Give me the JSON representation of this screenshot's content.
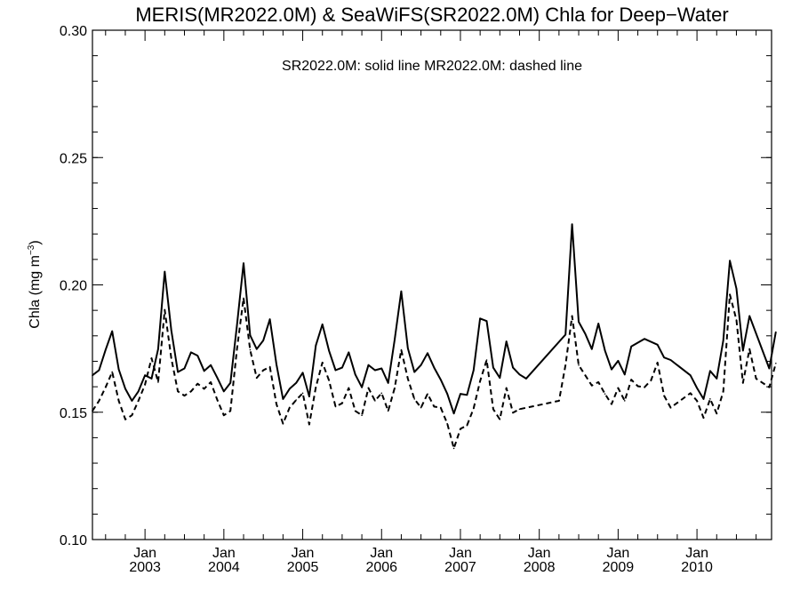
{
  "chart_data": {
    "type": "line",
    "title": "MERIS(MR2022.0M) & SeaWiFS(SR2022.0M)  Chla for Deep−Water",
    "annotation": "SR2022.0M: solid line   MR2022.0M: dashed line",
    "ylabel": {
      "base": "Chla (mg m",
      "sup": "−3",
      "close": ")"
    },
    "xlabel": "",
    "ylim": [
      0.1,
      0.3
    ],
    "xlim": [
      "2002-05",
      "2010-12"
    ],
    "y_ticks": [
      "0.10",
      "0.15",
      "0.20",
      "0.25",
      "0.30"
    ],
    "y_tick_values": [
      0.1,
      0.15,
      0.2,
      0.25,
      0.3
    ],
    "x_ticks": [
      {
        "month": "Jan",
        "year": "2003",
        "date": "2003-01"
      },
      {
        "month": "Jan",
        "year": "2004",
        "date": "2004-01"
      },
      {
        "month": "Jan",
        "year": "2005",
        "date": "2005-01"
      },
      {
        "month": "Jan",
        "year": "2006",
        "date": "2006-01"
      },
      {
        "month": "Jan",
        "year": "2007",
        "date": "2007-01"
      },
      {
        "month": "Jan",
        "year": "2008",
        "date": "2008-01"
      },
      {
        "month": "Jan",
        "year": "2009",
        "date": "2009-01"
      },
      {
        "month": "Jan",
        "year": "2010",
        "date": "2010-01"
      }
    ],
    "grid": false,
    "series": [
      {
        "name": "SR2022.0M",
        "style": "solid",
        "color": "#000000",
        "points": [
          [
            "2002-05",
            0.1645
          ],
          [
            "2002-06",
            0.1665
          ],
          [
            "2002-07",
            0.1745
          ],
          [
            "2002-08",
            0.1818
          ],
          [
            "2002-09",
            0.1668
          ],
          [
            "2002-10",
            0.1592
          ],
          [
            "2002-11",
            0.1545
          ],
          [
            "2002-12",
            0.1582
          ],
          [
            "2003-01",
            0.1645
          ],
          [
            "2003-02",
            0.1632
          ],
          [
            "2003-03",
            0.1748
          ],
          [
            "2003-04",
            0.2052
          ],
          [
            "2003-05",
            0.1822
          ],
          [
            "2003-06",
            0.1658
          ],
          [
            "2003-07",
            0.1672
          ],
          [
            "2003-08",
            0.1735
          ],
          [
            "2003-09",
            0.1722
          ],
          [
            "2003-10",
            0.1662
          ],
          [
            "2003-11",
            0.1685
          ],
          [
            "2003-12",
            0.1635
          ],
          [
            "2004-01",
            0.1582
          ],
          [
            "2004-02",
            0.1615
          ],
          [
            "2004-03",
            0.1842
          ],
          [
            "2004-04",
            0.2085
          ],
          [
            "2004-05",
            0.1802
          ],
          [
            "2004-06",
            0.1748
          ],
          [
            "2004-07",
            0.1782
          ],
          [
            "2004-08",
            0.1865
          ],
          [
            "2004-09",
            0.1688
          ],
          [
            "2004-10",
            0.1552
          ],
          [
            "2004-11",
            0.1592
          ],
          [
            "2004-12",
            0.1615
          ],
          [
            "2005-01",
            0.1655
          ],
          [
            "2005-02",
            0.1562
          ],
          [
            "2005-03",
            0.1762
          ],
          [
            "2005-04",
            0.1845
          ],
          [
            "2005-05",
            0.1742
          ],
          [
            "2005-06",
            0.1665
          ],
          [
            "2005-07",
            0.1675
          ],
          [
            "2005-08",
            0.1735
          ],
          [
            "2005-09",
            0.1648
          ],
          [
            "2005-10",
            0.1598
          ],
          [
            "2005-11",
            0.1685
          ],
          [
            "2005-12",
            0.1665
          ],
          [
            "2006-01",
            0.1672
          ],
          [
            "2006-02",
            0.1615
          ],
          [
            "2006-03",
            0.1785
          ],
          [
            "2006-04",
            0.1975
          ],
          [
            "2006-05",
            0.1752
          ],
          [
            "2006-06",
            0.1658
          ],
          [
            "2006-07",
            0.1685
          ],
          [
            "2006-08",
            0.1732
          ],
          [
            "2006-09",
            0.1675
          ],
          [
            "2006-10",
            0.1628
          ],
          [
            "2006-11",
            0.1572
          ],
          [
            "2006-12",
            0.1495
          ],
          [
            "2007-01",
            0.1572
          ],
          [
            "2007-02",
            0.1568
          ],
          [
            "2007-03",
            0.1665
          ],
          [
            "2007-04",
            0.1868
          ],
          [
            "2007-05",
            0.1858
          ],
          [
            "2007-06",
            0.1675
          ],
          [
            "2007-07",
            0.1635
          ],
          [
            "2007-08",
            0.1778
          ],
          [
            "2007-09",
            0.1675
          ],
          [
            "2007-10",
            0.1648
          ],
          [
            "2007-11",
            0.1632
          ],
          [
            "2008-05",
            0.1805
          ],
          [
            "2008-06",
            0.2238
          ],
          [
            "2008-07",
            0.1855
          ],
          [
            "2008-08",
            0.1808
          ],
          [
            "2008-09",
            0.1748
          ],
          [
            "2008-10",
            0.1848
          ],
          [
            "2008-11",
            0.1742
          ],
          [
            "2008-12",
            0.1668
          ],
          [
            "2009-01",
            0.1702
          ],
          [
            "2009-02",
            0.1648
          ],
          [
            "2009-03",
            0.1758
          ],
          [
            "2009-05",
            0.1788
          ],
          [
            "2009-07",
            0.1765
          ],
          [
            "2009-08",
            0.1715
          ],
          [
            "2009-09",
            0.1705
          ],
          [
            "2009-12",
            0.1645
          ],
          [
            "2010-01",
            0.1595
          ],
          [
            "2010-02",
            0.1552
          ],
          [
            "2010-03",
            0.1662
          ],
          [
            "2010-04",
            0.1632
          ],
          [
            "2010-05",
            0.1782
          ],
          [
            "2010-06",
            0.2095
          ],
          [
            "2010-07",
            0.1985
          ],
          [
            "2010-08",
            0.1742
          ],
          [
            "2010-09",
            0.1878
          ],
          [
            "2010-12",
            0.1672
          ],
          [
            "2011-01",
            0.1815
          ]
        ]
      },
      {
        "name": "MR2022.0M",
        "style": "dashed",
        "color": "#000000",
        "points": [
          [
            "2002-05",
            0.1505
          ],
          [
            "2002-06",
            0.1545
          ],
          [
            "2002-07",
            0.1598
          ],
          [
            "2002-08",
            0.1658
          ],
          [
            "2002-09",
            0.1545
          ],
          [
            "2002-10",
            0.1472
          ],
          [
            "2002-11",
            0.1488
          ],
          [
            "2002-12",
            0.1545
          ],
          [
            "2003-01",
            0.1608
          ],
          [
            "2003-02",
            0.1712
          ],
          [
            "2003-03",
            0.1618
          ],
          [
            "2003-04",
            0.1902
          ],
          [
            "2003-05",
            0.1712
          ],
          [
            "2003-06",
            0.1582
          ],
          [
            "2003-07",
            0.1565
          ],
          [
            "2003-08",
            0.1582
          ],
          [
            "2003-09",
            0.1612
          ],
          [
            "2003-10",
            0.1592
          ],
          [
            "2003-11",
            0.1618
          ],
          [
            "2003-12",
            0.1548
          ],
          [
            "2004-01",
            0.1488
          ],
          [
            "2004-02",
            0.1505
          ],
          [
            "2004-03",
            0.1748
          ],
          [
            "2004-04",
            0.1948
          ],
          [
            "2004-05",
            0.1745
          ],
          [
            "2004-06",
            0.1635
          ],
          [
            "2004-07",
            0.1665
          ],
          [
            "2004-08",
            0.1678
          ],
          [
            "2004-09",
            0.1532
          ],
          [
            "2004-10",
            0.1455
          ],
          [
            "2004-11",
            0.1518
          ],
          [
            "2004-12",
            0.1548
          ],
          [
            "2005-01",
            0.1575
          ],
          [
            "2005-02",
            0.1452
          ],
          [
            "2005-03",
            0.1598
          ],
          [
            "2005-04",
            0.1695
          ],
          [
            "2005-05",
            0.1625
          ],
          [
            "2005-06",
            0.1522
          ],
          [
            "2005-07",
            0.1535
          ],
          [
            "2005-08",
            0.1595
          ],
          [
            "2005-09",
            0.1505
          ],
          [
            "2005-10",
            0.1488
          ],
          [
            "2005-11",
            0.1595
          ],
          [
            "2005-12",
            0.1545
          ],
          [
            "2006-01",
            0.1575
          ],
          [
            "2006-02",
            0.1505
          ],
          [
            "2006-03",
            0.1595
          ],
          [
            "2006-04",
            0.1745
          ],
          [
            "2006-05",
            0.1632
          ],
          [
            "2006-06",
            0.1552
          ],
          [
            "2006-07",
            0.1518
          ],
          [
            "2006-08",
            0.1572
          ],
          [
            "2006-09",
            0.1522
          ],
          [
            "2006-10",
            0.1518
          ],
          [
            "2006-11",
            0.1455
          ],
          [
            "2006-12",
            0.1358
          ],
          [
            "2007-01",
            0.1435
          ],
          [
            "2007-02",
            0.1448
          ],
          [
            "2007-03",
            0.1515
          ],
          [
            "2007-04",
            0.1622
          ],
          [
            "2007-05",
            0.1705
          ],
          [
            "2007-06",
            0.1512
          ],
          [
            "2007-07",
            0.1472
          ],
          [
            "2007-08",
            0.1595
          ],
          [
            "2007-09",
            0.1498
          ],
          [
            "2007-10",
            0.1512
          ],
          [
            "2008-04",
            0.1545
          ],
          [
            "2008-05",
            0.1685
          ],
          [
            "2008-06",
            0.1878
          ],
          [
            "2008-07",
            0.1685
          ],
          [
            "2008-08",
            0.1645
          ],
          [
            "2008-09",
            0.1605
          ],
          [
            "2008-10",
            0.1618
          ],
          [
            "2008-11",
            0.1572
          ],
          [
            "2008-12",
            0.1532
          ],
          [
            "2009-01",
            0.1595
          ],
          [
            "2009-02",
            0.1545
          ],
          [
            "2009-03",
            0.1628
          ],
          [
            "2009-04",
            0.1602
          ],
          [
            "2009-05",
            0.1598
          ],
          [
            "2009-06",
            0.1625
          ],
          [
            "2009-07",
            0.1695
          ],
          [
            "2009-08",
            0.1565
          ],
          [
            "2009-09",
            0.1518
          ],
          [
            "2009-12",
            0.1575
          ],
          [
            "2010-01",
            0.1545
          ],
          [
            "2010-02",
            0.1478
          ],
          [
            "2010-03",
            0.1552
          ],
          [
            "2010-04",
            0.1495
          ],
          [
            "2010-05",
            0.1582
          ],
          [
            "2010-06",
            0.1962
          ],
          [
            "2010-07",
            0.1862
          ],
          [
            "2010-08",
            0.1615
          ],
          [
            "2010-09",
            0.1748
          ],
          [
            "2010-10",
            0.1632
          ],
          [
            "2010-12",
            0.1598
          ],
          [
            "2011-01",
            0.1692
          ]
        ]
      }
    ]
  }
}
